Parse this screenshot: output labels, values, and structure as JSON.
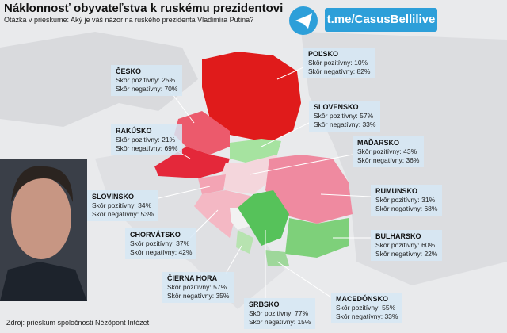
{
  "header": {
    "title": "Náklonnosť obyvateľstva k ruskému prezidentovi",
    "subtitle": "Otázka v prieskume: Aký je váš názor na ruského prezidenta Vladimíra Putina?",
    "channel": "t.me/CasusBellilive"
  },
  "labels": {
    "positive": "Skôr pozitívny:",
    "negative": "Skôr negatívny:"
  },
  "countries": [
    {
      "name": "POĽSKO",
      "positive": "10%",
      "negative": "82%"
    },
    {
      "name": "ČESKO",
      "positive": "25%",
      "negative": "70%"
    },
    {
      "name": "SLOVENSKO",
      "positive": "57%",
      "negative": "33%"
    },
    {
      "name": "RAKÚSKO",
      "positive": "21%",
      "negative": "69%"
    },
    {
      "name": "MAĎARSKO",
      "positive": "43%",
      "negative": "36%"
    },
    {
      "name": "SLOVINSKO",
      "positive": "34%",
      "negative": "53%"
    },
    {
      "name": "RUMUNSKO",
      "positive": "31%",
      "negative": "68%"
    },
    {
      "name": "CHORVÁTSKO",
      "positive": "37%",
      "negative": "42%"
    },
    {
      "name": "BULHARSKO",
      "positive": "60%",
      "negative": "22%"
    },
    {
      "name": "ČIERNA HORA",
      "positive": "57%",
      "negative": "35%"
    },
    {
      "name": "SRBSKO",
      "positive": "77%",
      "negative": "15%"
    },
    {
      "name": "MACEDÓNSKO",
      "positive": "55%",
      "negative": "33%"
    }
  ],
  "footer": {
    "source": "Zdroj: prieskum spoločnosti Nézőpont Intézet"
  }
}
